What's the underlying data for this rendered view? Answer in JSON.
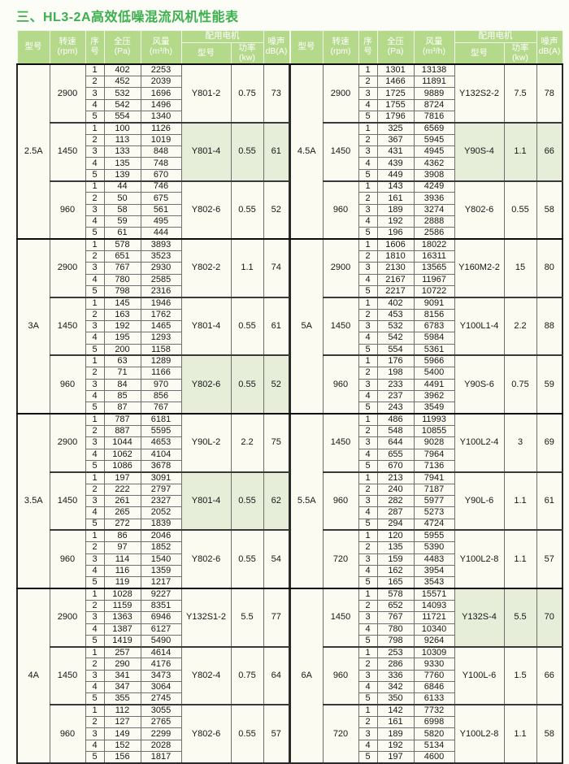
{
  "title": "三、HL3-2A高效低噪混流风机性能表",
  "colors": {
    "title_green": "#3bb04c",
    "header_bg": "#b4d98a",
    "header_text": "#ffffff",
    "cell_bg": "#fbfbf1",
    "tint_bg": "#e6eed9"
  },
  "header": {
    "model": "型号",
    "speed": [
      "转速",
      "(rpm)"
    ],
    "seq": [
      "序",
      "号"
    ],
    "pressure": [
      "全压",
      "(Pa)"
    ],
    "volume": [
      "风量",
      "(m³/h)"
    ],
    "motor_group": "配用电机",
    "motor_model": "型号",
    "motor_power": "功率(kw)",
    "noise": [
      "噪声",
      "dB(A)"
    ]
  },
  "tables": {
    "left": {
      "models": [
        {
          "name": "2.5A",
          "groups": [
            {
              "rpm": "2900",
              "rows": [
                [
                  1,
                  402,
                  2253
                ],
                [
                  2,
                  452,
                  2039
                ],
                [
                  3,
                  532,
                  1696
                ],
                [
                  4,
                  542,
                  1496
                ],
                [
                  5,
                  554,
                  1340
                ]
              ],
              "motor": "Y801-2",
              "power": "0.75",
              "noise": "73",
              "tinted": false
            },
            {
              "rpm": "1450",
              "rows": [
                [
                  1,
                  100,
                  1126
                ],
                [
                  2,
                  113,
                  1019
                ],
                [
                  3,
                  133,
                  848
                ],
                [
                  4,
                  135,
                  748
                ],
                [
                  5,
                  139,
                  670
                ]
              ],
              "motor": "Y801-4",
              "power": "0.55",
              "noise": "61",
              "tinted": true
            },
            {
              "rpm": "960",
              "rows": [
                [
                  1,
                  44,
                  746
                ],
                [
                  2,
                  50,
                  675
                ],
                [
                  3,
                  58,
                  561
                ],
                [
                  4,
                  59,
                  495
                ],
                [
                  5,
                  61,
                  444
                ]
              ],
              "motor": "Y802-6",
              "power": "0.55",
              "noise": "52",
              "tinted": false
            }
          ]
        },
        {
          "name": "3A",
          "groups": [
            {
              "rpm": "2900",
              "rows": [
                [
                  1,
                  578,
                  3893
                ],
                [
                  2,
                  651,
                  3523
                ],
                [
                  3,
                  767,
                  2930
                ],
                [
                  4,
                  780,
                  2585
                ],
                [
                  5,
                  798,
                  2316
                ]
              ],
              "motor": "Y802-2",
              "power": "1.1",
              "noise": "74",
              "tinted": false
            },
            {
              "rpm": "1450",
              "rows": [
                [
                  1,
                  145,
                  1946
                ],
                [
                  2,
                  163,
                  1762
                ],
                [
                  3,
                  192,
                  1465
                ],
                [
                  4,
                  195,
                  1293
                ],
                [
                  5,
                  200,
                  1158
                ]
              ],
              "motor": "Y801-4",
              "power": "0.55",
              "noise": "61",
              "tinted": false
            },
            {
              "rpm": "960",
              "rows": [
                [
                  1,
                  63,
                  1289
                ],
                [
                  2,
                  71,
                  1166
                ],
                [
                  3,
                  84,
                  970
                ],
                [
                  4,
                  85,
                  856
                ],
                [
                  5,
                  87,
                  767
                ]
              ],
              "motor": "Y802-6",
              "power": "0.55",
              "noise": "52",
              "tinted": true
            }
          ]
        },
        {
          "name": "3.5A",
          "groups": [
            {
              "rpm": "2900",
              "rows": [
                [
                  1,
                  787,
                  6181
                ],
                [
                  2,
                  887,
                  5595
                ],
                [
                  3,
                  1044,
                  4653
                ],
                [
                  4,
                  1062,
                  4104
                ],
                [
                  5,
                  1086,
                  3678
                ]
              ],
              "motor": "Y90L-2",
              "power": "2.2",
              "noise": "75",
              "tinted": false
            },
            {
              "rpm": "1450",
              "rows": [
                [
                  1,
                  197,
                  3091
                ],
                [
                  2,
                  222,
                  2797
                ],
                [
                  3,
                  261,
                  2327
                ],
                [
                  4,
                  265,
                  2052
                ],
                [
                  5,
                  272,
                  1839
                ]
              ],
              "motor": "Y801-4",
              "power": "0.55",
              "noise": "62",
              "tinted": true
            },
            {
              "rpm": "960",
              "rows": [
                [
                  1,
                  86,
                  2046
                ],
                [
                  2,
                  97,
                  1852
                ],
                [
                  3,
                  114,
                  1540
                ],
                [
                  4,
                  116,
                  1359
                ],
                [
                  5,
                  119,
                  1217
                ]
              ],
              "motor": "Y802-6",
              "power": "0.55",
              "noise": "54",
              "tinted": false
            }
          ]
        },
        {
          "name": "4A",
          "groups": [
            {
              "rpm": "2900",
              "rows": [
                [
                  1,
                  1028,
                  9227
                ],
                [
                  2,
                  1159,
                  8351
                ],
                [
                  3,
                  1363,
                  6946
                ],
                [
                  4,
                  1387,
                  6127
                ],
                [
                  5,
                  1419,
                  5490
                ]
              ],
              "motor": "Y132S1-2",
              "power": "5.5",
              "noise": "77",
              "tinted": false
            },
            {
              "rpm": "1450",
              "rows": [
                [
                  1,
                  257,
                  4614
                ],
                [
                  2,
                  290,
                  4176
                ],
                [
                  3,
                  341,
                  3473
                ],
                [
                  4,
                  347,
                  3064
                ],
                [
                  5,
                  355,
                  2745
                ]
              ],
              "motor": "Y802-4",
              "power": "0.75",
              "noise": "64",
              "tinted": false
            },
            {
              "rpm": "960",
              "rows": [
                [
                  1,
                  112,
                  3055
                ],
                [
                  2,
                  127,
                  2765
                ],
                [
                  3,
                  149,
                  2299
                ],
                [
                  4,
                  152,
                  2028
                ],
                [
                  5,
                  156,
                  1817
                ]
              ],
              "motor": "Y802-6",
              "power": "0.55",
              "noise": "57",
              "tinted": false
            }
          ]
        }
      ]
    },
    "right": {
      "models": [
        {
          "name": "4.5A",
          "groups": [
            {
              "rpm": "2900",
              "rows": [
                [
                  1,
                  1301,
                  13138
                ],
                [
                  2,
                  1466,
                  11891
                ],
                [
                  3,
                  1725,
                  9889
                ],
                [
                  4,
                  1755,
                  8724
                ],
                [
                  5,
                  1796,
                  7816
                ]
              ],
              "motor": "Y132S2-2",
              "power": "7.5",
              "noise": "78",
              "tinted": false
            },
            {
              "rpm": "1450",
              "rows": [
                [
                  1,
                  325,
                  6569
                ],
                [
                  2,
                  367,
                  5945
                ],
                [
                  3,
                  431,
                  4945
                ],
                [
                  4,
                  439,
                  4362
                ],
                [
                  5,
                  449,
                  3908
                ]
              ],
              "motor": "Y90S-4",
              "power": "1.1",
              "noise": "66",
              "tinted": true
            },
            {
              "rpm": "960",
              "rows": [
                [
                  1,
                  143,
                  4249
                ],
                [
                  2,
                  161,
                  3936
                ],
                [
                  3,
                  189,
                  3274
                ],
                [
                  4,
                  192,
                  2888
                ],
                [
                  5,
                  196,
                  2586
                ]
              ],
              "motor": "Y802-6",
              "power": "0.55",
              "noise": "58",
              "tinted": false
            }
          ]
        },
        {
          "name": "5A",
          "groups": [
            {
              "rpm": "2900",
              "rows": [
                [
                  1,
                  1606,
                  18022
                ],
                [
                  2,
                  1810,
                  16311
                ],
                [
                  3,
                  2130,
                  13565
                ],
                [
                  4,
                  2167,
                  11967
                ],
                [
                  5,
                  2217,
                  10722
                ]
              ],
              "motor": "Y160M2-2",
              "power": "15",
              "noise": "80",
              "tinted": false
            },
            {
              "rpm": "1450",
              "rows": [
                [
                  1,
                  402,
                  9091
                ],
                [
                  2,
                  453,
                  8156
                ],
                [
                  3,
                  532,
                  6783
                ],
                [
                  4,
                  542,
                  5984
                ],
                [
                  5,
                  554,
                  5361
                ]
              ],
              "motor": "Y100L1-4",
              "power": "2.2",
              "noise": "88",
              "tinted": false
            },
            {
              "rpm": "960",
              "rows": [
                [
                  1,
                  176,
                  5966
                ],
                [
                  2,
                  198,
                  5400
                ],
                [
                  3,
                  233,
                  4491
                ],
                [
                  4,
                  237,
                  3962
                ],
                [
                  5,
                  243,
                  3549
                ]
              ],
              "motor": "Y90S-6",
              "power": "0.75",
              "noise": "59",
              "tinted": false
            }
          ]
        },
        {
          "name": "5.5A",
          "groups": [
            {
              "rpm": "1450",
              "rows": [
                [
                  1,
                  486,
                  11993
                ],
                [
                  2,
                  548,
                  10855
                ],
                [
                  3,
                  644,
                  9028
                ],
                [
                  4,
                  655,
                  7964
                ],
                [
                  5,
                  670,
                  7136
                ]
              ],
              "motor": "Y100L2-4",
              "power": "3",
              "noise": "69",
              "tinted": false
            },
            {
              "rpm": "960",
              "rows": [
                [
                  1,
                  213,
                  7941
                ],
                [
                  2,
                  240,
                  7187
                ],
                [
                  3,
                  282,
                  5977
                ],
                [
                  4,
                  287,
                  5273
                ],
                [
                  5,
                  294,
                  4724
                ]
              ],
              "motor": "Y90L-6",
              "power": "1.1",
              "noise": "61",
              "tinted": false
            },
            {
              "rpm": "720",
              "rows": [
                [
                  1,
                  120,
                  5955
                ],
                [
                  2,
                  135,
                  5390
                ],
                [
                  3,
                  159,
                  4483
                ],
                [
                  4,
                  162,
                  3954
                ],
                [
                  5,
                  165,
                  3543
                ]
              ],
              "motor": "Y100L2-8",
              "power": "1.1",
              "noise": "57",
              "tinted": false
            }
          ]
        },
        {
          "name": "6A",
          "groups": [
            {
              "rpm": "1450",
              "rows": [
                [
                  1,
                  578,
                  15571
                ],
                [
                  2,
                  652,
                  14093
                ],
                [
                  3,
                  767,
                  11721
                ],
                [
                  4,
                  780,
                  10340
                ],
                [
                  5,
                  798,
                  9264
                ]
              ],
              "motor": "Y132S-4",
              "power": "5.5",
              "noise": "70",
              "tinted": true
            },
            {
              "rpm": "960",
              "rows": [
                [
                  1,
                  253,
                  10309
                ],
                [
                  2,
                  286,
                  9330
                ],
                [
                  3,
                  336,
                  7760
                ],
                [
                  4,
                  342,
                  6846
                ],
                [
                  5,
                  350,
                  6133
                ]
              ],
              "motor": "Y100L-6",
              "power": "1.5",
              "noise": "66",
              "tinted": false
            },
            {
              "rpm": "720",
              "rows": [
                [
                  1,
                  142,
                  7732
                ],
                [
                  2,
                  161,
                  6998
                ],
                [
                  3,
                  189,
                  5820
                ],
                [
                  4,
                  192,
                  5134
                ],
                [
                  5,
                  197,
                  4600
                ]
              ],
              "motor": "Y100L2-8",
              "power": "1.1",
              "noise": "58",
              "tinted": false
            }
          ]
        }
      ]
    }
  }
}
